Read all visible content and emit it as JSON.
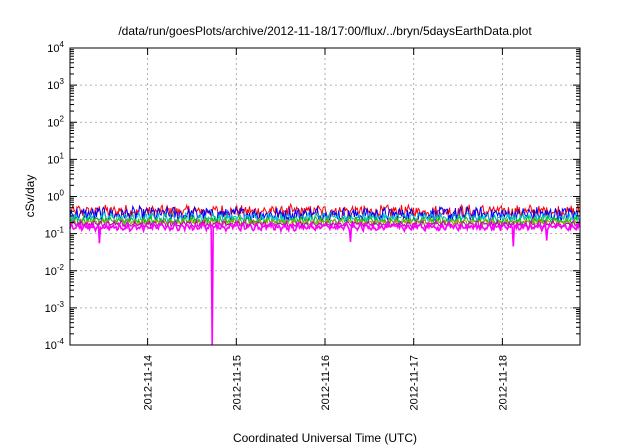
{
  "chart_data": {
    "type": "line",
    "title": "/data/run/goesPlots/archive/2012-11-18/17:00/flux/../bryn/5daysEarthData.plot",
    "xlabel": "Coordinated Universal Time (UTC)",
    "ylabel": "cSv/day",
    "yscale": "log",
    "ylim": [
      0.0001,
      10000
    ],
    "xlim": [
      "2012-11-13 03:00",
      "2012-11-18 21:00"
    ],
    "y_ticks": [
      {
        "mant": "10",
        "exp": "4",
        "value": 10000
      },
      {
        "mant": "10",
        "exp": "3",
        "value": 1000
      },
      {
        "mant": "10",
        "exp": "2",
        "value": 100
      },
      {
        "mant": "10",
        "exp": "1",
        "value": 10
      },
      {
        "mant": "10",
        "exp": "0",
        "value": 1
      },
      {
        "mant": "10",
        "exp": "-1",
        "value": 0.1
      },
      {
        "mant": "10",
        "exp": "-2",
        "value": 0.01
      },
      {
        "mant": "10",
        "exp": "-3",
        "value": 0.001
      },
      {
        "mant": "10",
        "exp": "-4",
        "value": 0.0001
      }
    ],
    "x_ticks": [
      "2012-11-14",
      "2012-11-15",
      "2012-11-16",
      "2012-11-17",
      "2012-11-18"
    ],
    "grid": true,
    "legend": "none",
    "series": [
      {
        "color": "#ff0000",
        "level": 0.4,
        "spread": 0.15,
        "dips": []
      },
      {
        "color": "#0000ff",
        "level": 0.33,
        "spread": 0.18,
        "dips": []
      },
      {
        "color": "#00bfbf",
        "level": 0.27,
        "spread": 0.1,
        "dips": []
      },
      {
        "color": "#00c000",
        "level": 0.22,
        "spread": 0.08,
        "dips": []
      },
      {
        "color": "#a0a000",
        "level": 0.2,
        "spread": 0.06,
        "dips": []
      },
      {
        "color": "#c000c0",
        "level": 0.18,
        "spread": 0.06,
        "dips": []
      },
      {
        "color": "#ff00ff",
        "level": 0.15,
        "spread": 0.07,
        "dips": [
          {
            "x": "2012-11-13 11:00",
            "y": 0.055
          },
          {
            "x": "2012-11-14 17:30",
            "y": 0.0001
          },
          {
            "x": "2012-11-16 07:00",
            "y": 0.06
          },
          {
            "x": "2012-11-18 03:00",
            "y": 0.045
          },
          {
            "x": "2012-11-18 12:00",
            "y": 0.065
          }
        ]
      }
    ]
  }
}
